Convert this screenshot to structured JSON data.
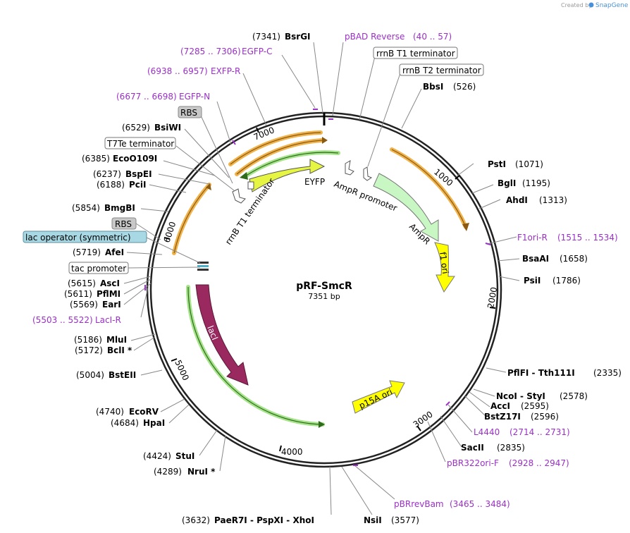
{
  "credit": {
    "prefix": "Created by",
    "brand": "SnapGene"
  },
  "plasmid": {
    "name": "pRF-SmcR",
    "size_label": "7351 bp"
  },
  "ticks": [
    "1000",
    "2000",
    "3000",
    "4000",
    "5000",
    "6000",
    "7000"
  ],
  "enzymes_right": [
    {
      "name": "BbsI",
      "pos": "(526)"
    },
    {
      "name": "PstI",
      "pos": "(1071)"
    },
    {
      "name": "BglI",
      "pos": "(1195)"
    },
    {
      "name": "AhdI",
      "pos": "(1313)"
    },
    {
      "name": "BsaAI",
      "pos": "(1658)"
    },
    {
      "name": "PsiI",
      "pos": "(1786)"
    },
    {
      "name": "PflFI  -  Tth111I",
      "pos": "(2335)"
    },
    {
      "name": "NcoI  -  StyI",
      "pos": "(2578)"
    },
    {
      "name": "AccI",
      "pos": "(2595)"
    },
    {
      "name": "BstZ17I",
      "pos": "(2596)"
    },
    {
      "name": "SacII",
      "pos": "(2835)"
    },
    {
      "name": "NsiI",
      "pos": "(3577)"
    }
  ],
  "enzymes_left": [
    {
      "name": "BsrGI",
      "pos": "(7341)"
    },
    {
      "name": "BsiWI",
      "pos": "(6529)"
    },
    {
      "name": "EcoO109I",
      "pos": "(6385)"
    },
    {
      "name": "BspEI",
      "pos": "(6237)"
    },
    {
      "name": "PciI",
      "pos": "(6188)"
    },
    {
      "name": "BmgBI",
      "pos": "(5854)"
    },
    {
      "name": "AfeI",
      "pos": "(5719)"
    },
    {
      "name": "AscI",
      "pos": "(5615)"
    },
    {
      "name": "PflMI",
      "pos": "(5611)"
    },
    {
      "name": "EarI",
      "pos": "(5569)"
    },
    {
      "name": "MluI",
      "pos": "(5186)"
    },
    {
      "name": "BclI *",
      "pos": "(5172)"
    },
    {
      "name": "BstEII",
      "pos": "(5004)"
    },
    {
      "name": "EcoRV",
      "pos": "(4740)"
    },
    {
      "name": "HpaI",
      "pos": "(4684)"
    },
    {
      "name": "StuI",
      "pos": "(4424)"
    },
    {
      "name": "NruI *",
      "pos": "(4289)"
    },
    {
      "name": "PaeR7I  -  PspXI  -  XhoI",
      "pos": "(3632)"
    }
  ],
  "primers": [
    {
      "name": "pBAD Reverse",
      "range": "(40 .. 57)"
    },
    {
      "name": "EGFP-C",
      "range": "(7285 .. 7306)"
    },
    {
      "name": "EXFP-R",
      "range": "(6938 .. 6957)"
    },
    {
      "name": "EGFP-N",
      "range": "(6677 .. 6698)"
    },
    {
      "name": "F1ori-R",
      "range": "(1515 .. 1534)"
    },
    {
      "name": "L4440",
      "range": "(2714 .. 2731)"
    },
    {
      "name": "pBR322ori-F",
      "range": "(2928 .. 2947)"
    },
    {
      "name": "pBRrevBam",
      "range": "(3465 .. 3484)"
    },
    {
      "name": "LacI-R",
      "range": "(5503 .. 5522)"
    }
  ],
  "boxed_features": [
    {
      "label": "rrnB T1 terminator",
      "style": "white"
    },
    {
      "label": "rrnB T2 terminator",
      "style": "white"
    },
    {
      "label": "RBS",
      "style": "gray"
    },
    {
      "label": "T7Te terminator",
      "style": "white"
    },
    {
      "label": "RBS",
      "style": "gray"
    },
    {
      "label": "lac operator (symmetric)",
      "style": "blue"
    },
    {
      "label": "tac promoter",
      "style": "white"
    }
  ],
  "features": [
    {
      "label": "EYFP",
      "color": "#e6f542"
    },
    {
      "label": "AmpR promoter",
      "color": "#ffffff"
    },
    {
      "label": "AmpR",
      "color": "#c9f7c4"
    },
    {
      "label": "f1 ori",
      "color": "#ffff00"
    },
    {
      "label": "p15A ori",
      "color": "#ffff00"
    },
    {
      "label": "lacI",
      "color": "#99295f"
    },
    {
      "label": "rrnB T1 terminator",
      "color": "#ffffff"
    }
  ],
  "colors": {
    "primer": "#9b2fc9",
    "orf_orange": "#f0b24a",
    "orf_green": "#a5e38a",
    "backbone": "#222222"
  }
}
